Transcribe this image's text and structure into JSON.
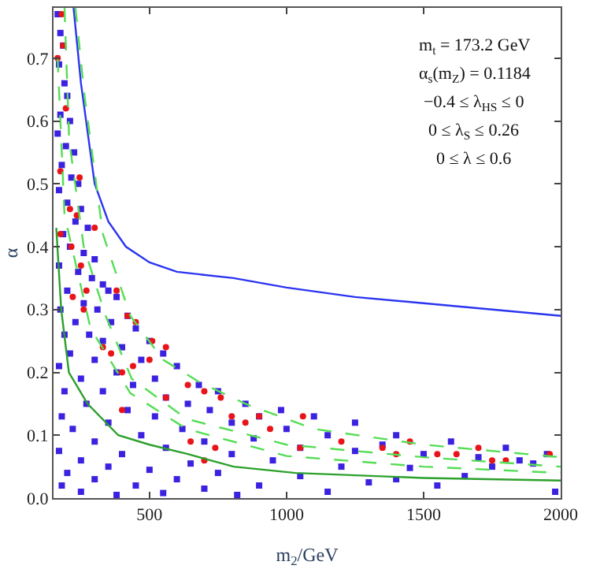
{
  "chart_data": {
    "type": "scatter",
    "xlabel": "m$_{2}$/GeV",
    "ylabel": "α",
    "xlim": [
      150,
      2000
    ],
    "ylim": [
      0,
      0.78
    ],
    "xticks": [
      500,
      1000,
      1500,
      2000
    ],
    "yticks": [
      {
        "value": 0,
        "label": "0.0"
      },
      0.1,
      0.2,
      0.3,
      0.4,
      0.5,
      0.6,
      0.7
    ],
    "annotations": [
      "m$_{t}$ = 173.2 GeV",
      "α$_{s}$(m$_{Z}$) = 0.1184",
      "−0.4 ≤ λ$_{HS}$ ≤ 0",
      "0 ≤ λ$_{S}$ ≤ 0.26",
      "0 ≤ λ ≤ 0.6"
    ],
    "series": [
      {
        "marker": "square",
        "color": "#3a22e0",
        "x": [
          165,
          175,
          185,
          170,
          190,
          200,
          175,
          210,
          165,
          195,
          225,
          180,
          215,
          240,
          170,
          200,
          250,
          230,
          185,
          275,
          210,
          260,
          300,
          170,
          240,
          290,
          330,
          200,
          350,
          380,
          260,
          175,
          310,
          420,
          230,
          360,
          190,
          280,
          450,
          330,
          500,
          400,
          210,
          550,
          300,
          470,
          170,
          380,
          600,
          520,
          250,
          680,
          440,
          190,
          330,
          750,
          560,
          640,
          270,
          850,
          420,
          720,
          980,
          180,
          520,
          900,
          1100,
          350,
          800,
          1250,
          620,
          1000,
          220,
          1400,
          470,
          1150,
          880,
          1600,
          300,
          700,
          1350,
          1050,
          1800,
          560,
          170,
          1250,
          1950,
          400,
          800,
          1500,
          1700,
          250,
          950,
          650,
          1900,
          1200,
          350,
          1450,
          500,
          750,
          200,
          1050,
          1650,
          600,
          300,
          1300,
          900,
          180,
          450,
          1550,
          700,
          250,
          1150,
          550,
          380,
          1980,
          820,
          1400,
          1750,
          1850
        ],
        "values": [
          0.77,
          0.74,
          0.72,
          0.69,
          0.66,
          0.64,
          0.61,
          0.6,
          0.58,
          0.56,
          0.55,
          0.53,
          0.51,
          0.5,
          0.49,
          0.47,
          0.46,
          0.44,
          0.42,
          0.43,
          0.4,
          0.39,
          0.38,
          0.37,
          0.36,
          0.35,
          0.34,
          0.33,
          0.33,
          0.32,
          0.31,
          0.3,
          0.3,
          0.29,
          0.28,
          0.28,
          0.26,
          0.26,
          0.27,
          0.25,
          0.25,
          0.24,
          0.23,
          0.23,
          0.22,
          0.22,
          0.21,
          0.2,
          0.21,
          0.19,
          0.19,
          0.18,
          0.18,
          0.17,
          0.17,
          0.17,
          0.16,
          0.15,
          0.15,
          0.15,
          0.14,
          0.14,
          0.14,
          0.13,
          0.13,
          0.13,
          0.13,
          0.12,
          0.12,
          0.12,
          0.11,
          0.11,
          0.11,
          0.1,
          0.1,
          0.1,
          0.095,
          0.09,
          0.09,
          0.09,
          0.085,
          0.08,
          0.08,
          0.08,
          0.075,
          0.075,
          0.07,
          0.07,
          0.07,
          0.07,
          0.065,
          0.06,
          0.06,
          0.055,
          0.055,
          0.05,
          0.05,
          0.048,
          0.045,
          0.04,
          0.04,
          0.035,
          0.035,
          0.03,
          0.03,
          0.025,
          0.02,
          0.02,
          0.02,
          0.02,
          0.015,
          0.01,
          0.01,
          0.008,
          0.005,
          0.01,
          0.005,
          0.03,
          0.05,
          0.06
        ]
      },
      {
        "marker": "circle",
        "color": "#e8141a",
        "x": [
          180,
          165,
          185,
          195,
          175,
          245,
          210,
          235,
          175,
          215,
          250,
          300,
          270,
          220,
          260,
          380,
          420,
          450,
          330,
          360,
          400,
          440,
          500,
          510,
          560,
          560,
          640,
          700,
          760,
          800,
          850,
          900,
          940,
          700,
          740,
          1060,
          1050,
          1200,
          1350,
          1400,
          1550,
          1620,
          1700,
          1750,
          1800,
          1960,
          1450,
          400,
          650
        ],
        "values": [
          0.77,
          0.7,
          0.72,
          0.62,
          0.52,
          0.51,
          0.46,
          0.45,
          0.42,
          0.4,
          0.37,
          0.43,
          0.33,
          0.32,
          0.3,
          0.33,
          0.29,
          0.28,
          0.24,
          0.23,
          0.2,
          0.21,
          0.22,
          0.25,
          0.24,
          0.16,
          0.18,
          0.17,
          0.16,
          0.13,
          0.12,
          0.13,
          0.11,
          0.06,
          0.08,
          0.13,
          0.08,
          0.09,
          0.08,
          0.07,
          0.07,
          0.07,
          0.08,
          0.06,
          0.06,
          0.07,
          0.09,
          0.14,
          0.09
        ]
      },
      {
        "type": "line",
        "line_style": "solid",
        "color": "#2b35f0",
        "x": [
          223,
          250,
          300,
          350,
          414,
          500,
          600,
          807,
          1000,
          1250,
          1500,
          1750,
          2000
        ],
        "values": [
          0.78,
          0.66,
          0.5,
          0.44,
          0.4,
          0.375,
          0.36,
          0.35,
          0.335,
          0.32,
          0.31,
          0.3,
          0.29
        ]
      },
      {
        "type": "line",
        "line_style": "solid",
        "color": "#2ca02c",
        "x": [
          160,
          178,
          206,
          274,
          386,
          500,
          640,
          807,
          1032,
          1500,
          2000
        ],
        "values": [
          0.43,
          0.3,
          0.2,
          0.15,
          0.1,
          0.085,
          0.07,
          0.05,
          0.04,
          0.032,
          0.028
        ]
      },
      {
        "type": "line",
        "line_style": "dashed",
        "color": "#55dd55",
        "x": [
          230,
          263,
          330,
          430,
          550,
          680,
          850,
          1100,
          1500,
          2000
        ],
        "values": [
          0.78,
          0.64,
          0.42,
          0.29,
          0.22,
          0.185,
          0.15,
          0.11,
          0.085,
          0.065
        ]
      },
      {
        "type": "line",
        "line_style": "dashed",
        "color": "#55dd55",
        "x": [
          190,
          207,
          260,
          340,
          435,
          635,
          1000,
          1500,
          2000
        ],
        "values": [
          0.78,
          0.57,
          0.4,
          0.29,
          0.19,
          0.126,
          0.085,
          0.065,
          0.05
        ]
      },
      {
        "type": "line",
        "line_style": "dashed",
        "color": "#55dd55",
        "x": [
          165,
          190,
          285,
          430,
          635,
          1000,
          1500,
          2000
        ],
        "values": [
          0.7,
          0.45,
          0.27,
          0.167,
          0.11,
          0.067,
          0.05,
          0.04
        ]
      }
    ]
  }
}
